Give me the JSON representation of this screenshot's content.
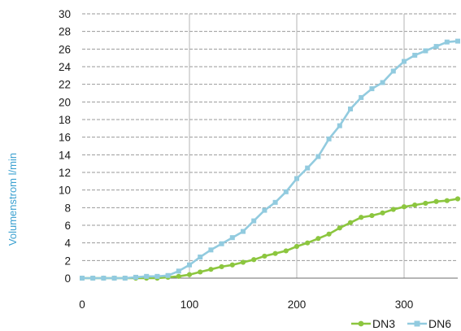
{
  "chart_data": {
    "type": "line",
    "title": "",
    "xlabel": "",
    "ylabel": "Volumenstrom l/min",
    "xlim": [
      0,
      350
    ],
    "ylim": [
      0,
      30
    ],
    "x_ticks": [
      0,
      100,
      200,
      300
    ],
    "y_ticks": [
      0,
      2,
      4,
      6,
      8,
      10,
      12,
      14,
      16,
      18,
      20,
      22,
      24,
      26,
      28,
      30
    ],
    "grid": true,
    "legend_position": "bottom-right",
    "x": [
      0,
      10,
      20,
      30,
      40,
      50,
      60,
      70,
      80,
      90,
      100,
      110,
      120,
      130,
      140,
      150,
      160,
      170,
      180,
      190,
      200,
      210,
      220,
      230,
      240,
      250,
      260,
      270,
      280,
      290,
      300,
      310,
      320,
      330,
      340,
      350
    ],
    "series": [
      {
        "name": "DN3",
        "color": "#8cc63f",
        "values": [
          0,
          0,
          0,
          0,
          0,
          0,
          0,
          0,
          0.1,
          0.2,
          0.4,
          0.7,
          1.0,
          1.3,
          1.5,
          1.8,
          2.1,
          2.5,
          2.8,
          3.1,
          3.6,
          4.0,
          4.5,
          5.0,
          5.7,
          6.3,
          6.9,
          7.1,
          7.4,
          7.8,
          8.1,
          8.3,
          8.5,
          8.7,
          8.8,
          9.0
        ]
      },
      {
        "name": "DN6",
        "color": "#92cbdf",
        "values": [
          0,
          0,
          0,
          0,
          0,
          0.1,
          0.2,
          0.2,
          0.3,
          0.8,
          1.5,
          2.4,
          3.2,
          3.9,
          4.6,
          5.3,
          6.5,
          7.7,
          8.6,
          9.8,
          11.3,
          12.5,
          13.8,
          15.8,
          17.3,
          19.2,
          20.5,
          21.5,
          22.2,
          23.5,
          24.6,
          25.3,
          25.8,
          26.3,
          26.8,
          26.9
        ]
      }
    ]
  }
}
